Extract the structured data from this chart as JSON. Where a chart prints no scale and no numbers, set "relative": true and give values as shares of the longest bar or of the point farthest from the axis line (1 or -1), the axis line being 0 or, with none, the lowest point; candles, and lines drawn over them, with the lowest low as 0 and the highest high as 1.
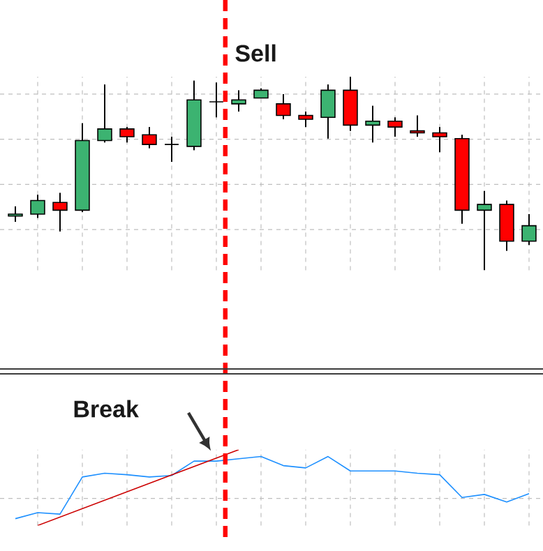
{
  "chart_data": [
    {
      "type": "candlestick",
      "relative": true,
      "grid": true,
      "categories": [
        null,
        null,
        null,
        null,
        null,
        null,
        null,
        null,
        null,
        null,
        null,
        null,
        null,
        null,
        null,
        null,
        null,
        null,
        null,
        null,
        null,
        null,
        null,
        null
      ],
      "ohlc": [
        [
          0.28,
          0.33,
          0.25,
          0.29
        ],
        [
          0.29,
          0.39,
          0.27,
          0.36
        ],
        [
          0.35,
          0.4,
          0.2,
          0.31
        ],
        [
          0.31,
          0.76,
          0.3,
          0.67
        ],
        [
          0.67,
          0.96,
          0.66,
          0.73
        ],
        [
          0.73,
          0.74,
          0.66,
          0.69
        ],
        [
          0.7,
          0.74,
          0.63,
          0.65
        ],
        [
          0.65,
          0.69,
          0.56,
          0.65
        ],
        [
          0.64,
          0.98,
          0.62,
          0.88
        ],
        [
          0.87,
          0.97,
          0.79,
          0.87
        ],
        [
          0.86,
          0.93,
          0.82,
          0.88
        ],
        [
          0.89,
          0.94,
          0.89,
          0.93
        ],
        [
          0.86,
          0.91,
          0.78,
          0.8
        ],
        [
          0.8,
          0.82,
          0.74,
          0.78
        ],
        [
          0.79,
          0.96,
          0.68,
          0.93
        ],
        [
          0.93,
          1,
          0.72,
          0.75
        ],
        [
          0.75,
          0.85,
          0.66,
          0.77
        ],
        [
          0.77,
          0.79,
          0.69,
          0.74
        ],
        [
          0.72,
          0.8,
          0.69,
          0.71
        ],
        [
          0.71,
          0.74,
          0.61,
          0.69
        ],
        [
          0.68,
          0.7,
          0.24,
          0.31
        ],
        [
          0.31,
          0.41,
          0,
          0.34
        ],
        [
          0.34,
          0.36,
          0.1,
          0.15
        ],
        [
          0.15,
          0.29,
          0.13,
          0.23
        ]
      ],
      "colors": [
        "#3cb371",
        "#3cb371",
        "#ff0000",
        "#3cb371",
        "#3cb371",
        "#ff0000",
        "#ff0000",
        "#000000",
        "#3cb371",
        "#000000",
        "#3cb371",
        "#3cb371",
        "#ff0000",
        "#ff0000",
        "#3cb371",
        "#ff0000",
        "#3cb371",
        "#ff0000",
        "#ff0000",
        "#ff0000",
        "#ff0000",
        "#3cb371",
        "#ff0000",
        "#3cb371"
      ],
      "annotations": [
        "Sell"
      ]
    },
    {
      "type": "line",
      "relative": true,
      "grid": true,
      "categories": [
        null,
        null,
        null,
        null,
        null,
        null,
        null,
        null,
        null,
        null,
        null,
        null,
        null,
        null,
        null,
        null,
        null,
        null,
        null,
        null,
        null,
        null,
        null,
        null
      ],
      "series": [
        {
          "color": "#1e90ff",
          "values": [
            0.09,
            0.17,
            0.15,
            0.64,
            0.69,
            0.67,
            0.64,
            0.66,
            0.85,
            0.85,
            0.88,
            0.91,
            0.79,
            0.76,
            0.91,
            0.72,
            0.72,
            0.72,
            0.69,
            0.67,
            0.37,
            0.41,
            0.31,
            0.42
          ]
        },
        {
          "type": "line",
          "color": "#cc0000",
          "values": [
            null,
            0,
            null,
            null,
            null,
            null,
            null,
            null,
            null,
            null,
            1,
            null,
            null,
            null,
            null,
            null,
            null,
            null,
            null,
            null,
            null,
            null,
            null,
            null
          ]
        }
      ],
      "annotations": [
        "Break"
      ]
    }
  ]
}
